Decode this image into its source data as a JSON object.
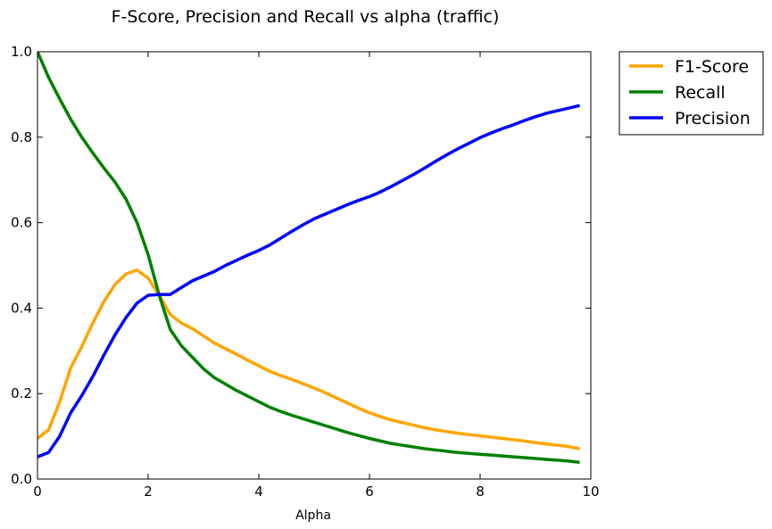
{
  "chart_data": {
    "type": "line",
    "title": "F-Score, Precision and Recall vs alpha (traffic)",
    "xlabel": "Alpha",
    "ylabel": "",
    "xlim": [
      0,
      10
    ],
    "ylim": [
      0,
      1
    ],
    "x_ticks": [
      "0",
      "2",
      "4",
      "6",
      "8",
      "10"
    ],
    "y_ticks": [
      "0.0",
      "0.2",
      "0.4",
      "0.6",
      "0.8",
      "1.0"
    ],
    "grid": false,
    "legend_placement": "outside-top-right",
    "x": [
      0,
      0.2,
      0.4,
      0.6,
      0.8,
      1.0,
      1.2,
      1.4,
      1.6,
      1.8,
      2.0,
      2.2,
      2.4,
      2.6,
      2.8,
      3.0,
      3.2,
      3.4,
      3.6,
      3.8,
      4.0,
      4.2,
      4.4,
      4.6,
      4.8,
      5.0,
      5.2,
      5.4,
      5.6,
      5.8,
      6.0,
      6.2,
      6.4,
      6.6,
      6.8,
      7.0,
      7.2,
      7.4,
      7.6,
      7.8,
      8.0,
      8.2,
      8.4,
      8.6,
      8.8,
      9.0,
      9.2,
      9.4,
      9.6,
      9.8
    ],
    "series": [
      {
        "name": "F1-Score",
        "color": "#ffa500",
        "values": [
          0.095,
          0.115,
          0.18,
          0.26,
          0.31,
          0.365,
          0.415,
          0.455,
          0.48,
          0.489,
          0.47,
          0.43,
          0.385,
          0.365,
          0.352,
          0.335,
          0.318,
          0.305,
          0.292,
          0.278,
          0.265,
          0.252,
          0.242,
          0.233,
          0.223,
          0.213,
          0.202,
          0.19,
          0.178,
          0.166,
          0.155,
          0.146,
          0.138,
          0.132,
          0.126,
          0.12,
          0.115,
          0.111,
          0.107,
          0.104,
          0.101,
          0.098,
          0.095,
          0.092,
          0.089,
          0.085,
          0.082,
          0.079,
          0.076,
          0.071
        ]
      },
      {
        "name": "Recall",
        "color": "#008000",
        "values": [
          1.0,
          0.94,
          0.89,
          0.842,
          0.8,
          0.763,
          0.728,
          0.695,
          0.655,
          0.6,
          0.525,
          0.43,
          0.35,
          0.312,
          0.285,
          0.258,
          0.237,
          0.222,
          0.207,
          0.194,
          0.181,
          0.168,
          0.158,
          0.149,
          0.141,
          0.133,
          0.125,
          0.117,
          0.109,
          0.102,
          0.095,
          0.089,
          0.083,
          0.079,
          0.075,
          0.071,
          0.068,
          0.065,
          0.062,
          0.06,
          0.058,
          0.056,
          0.054,
          0.052,
          0.05,
          0.048,
          0.046,
          0.044,
          0.042,
          0.039
        ]
      },
      {
        "name": "Precision",
        "color": "#0000ff",
        "values": [
          0.052,
          0.062,
          0.1,
          0.155,
          0.195,
          0.24,
          0.29,
          0.337,
          0.378,
          0.412,
          0.43,
          0.432,
          0.432,
          0.448,
          0.464,
          0.475,
          0.486,
          0.5,
          0.512,
          0.524,
          0.535,
          0.548,
          0.564,
          0.58,
          0.595,
          0.609,
          0.62,
          0.631,
          0.642,
          0.652,
          0.661,
          0.672,
          0.685,
          0.699,
          0.713,
          0.728,
          0.744,
          0.759,
          0.773,
          0.786,
          0.799,
          0.81,
          0.82,
          0.829,
          0.839,
          0.848,
          0.856,
          0.862,
          0.868,
          0.874
        ]
      }
    ]
  }
}
